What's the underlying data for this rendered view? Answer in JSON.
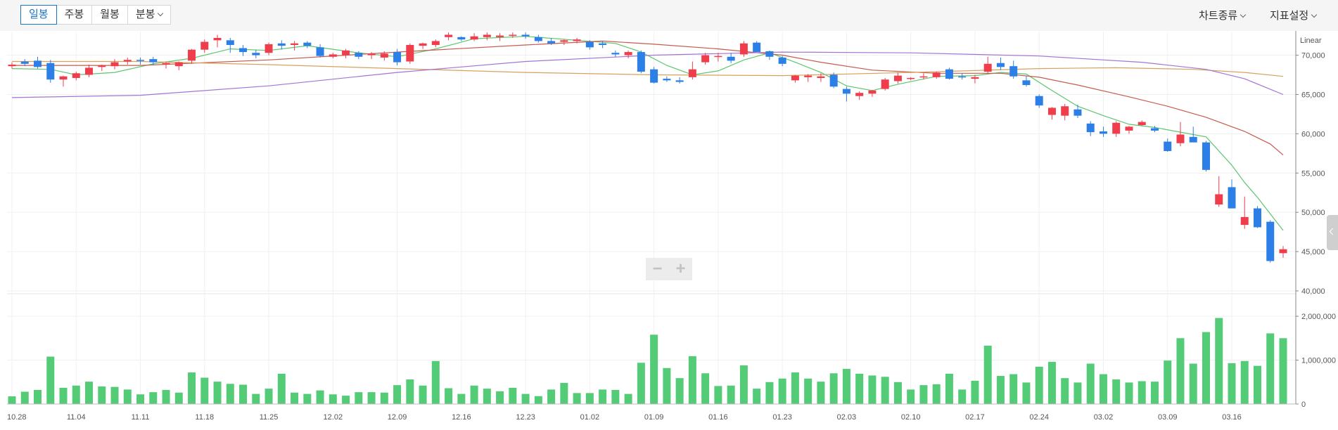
{
  "toolbar": {
    "tabs": [
      {
        "label": "일봉",
        "active": true
      },
      {
        "label": "주봉",
        "active": false
      },
      {
        "label": "월봉",
        "active": false
      },
      {
        "label": "분봉",
        "active": false,
        "dropdown": true
      }
    ],
    "chart_type_label": "차트종류",
    "indicator_label": "지표설정"
  },
  "zoom": {
    "minus": "−",
    "plus": "+"
  },
  "chart_data": {
    "type": "candlestick",
    "scale_label": "Linear",
    "price_axis": {
      "range": [
        40000,
        73000
      ],
      "ticks": [
        "40,000",
        "45,000",
        "50,000",
        "55,000",
        "60,000",
        "65,000",
        "70,000"
      ]
    },
    "volume_axis": {
      "range": [
        0,
        2450000
      ],
      "ticks": [
        "0",
        "1,000,000",
        "2,000,000"
      ]
    },
    "x_tick_labels": [
      {
        "i": 0,
        "label": "10.28"
      },
      {
        "i": 5,
        "label": "11.04"
      },
      {
        "i": 10,
        "label": "11.11"
      },
      {
        "i": 15,
        "label": "11.18"
      },
      {
        "i": 20,
        "label": "11.25"
      },
      {
        "i": 25,
        "label": "12.02"
      },
      {
        "i": 30,
        "label": "12.09"
      },
      {
        "i": 35,
        "label": "12.16"
      },
      {
        "i": 40,
        "label": "12.23"
      },
      {
        "i": 45,
        "label": "01.02"
      },
      {
        "i": 50,
        "label": "01.09"
      },
      {
        "i": 55,
        "label": "01.16"
      },
      {
        "i": 60,
        "label": "01.23"
      },
      {
        "i": 65,
        "label": "02.03"
      },
      {
        "i": 70,
        "label": "02.10"
      },
      {
        "i": 75,
        "label": "02.17"
      },
      {
        "i": 80,
        "label": "02.24"
      },
      {
        "i": 85,
        "label": "03.02"
      },
      {
        "i": 90,
        "label": "03.09"
      },
      {
        "i": 95,
        "label": "03.16"
      }
    ],
    "candles": [
      [
        68600,
        69100,
        68300,
        68800
      ],
      [
        69200,
        69500,
        68600,
        68900
      ],
      [
        69300,
        69800,
        68300,
        68500
      ],
      [
        69000,
        69400,
        66500,
        66900
      ],
      [
        66900,
        67400,
        66000,
        67300
      ],
      [
        67100,
        67900,
        66800,
        67700
      ],
      [
        67500,
        68800,
        67200,
        68400
      ],
      [
        68500,
        68800,
        68000,
        68700
      ],
      [
        68600,
        69500,
        68200,
        69100
      ],
      [
        69200,
        69700,
        68800,
        69400
      ],
      [
        69400,
        69700,
        68800,
        69300
      ],
      [
        69500,
        69800,
        68700,
        69100
      ],
      [
        68800,
        69200,
        68300,
        69000
      ],
      [
        68600,
        69200,
        68100,
        69100
      ],
      [
        69300,
        70800,
        68900,
        70700
      ],
      [
        70700,
        72000,
        70300,
        71700
      ],
      [
        71900,
        72600,
        71000,
        72200
      ],
      [
        71900,
        72200,
        70300,
        71300
      ],
      [
        70900,
        71300,
        69900,
        70400
      ],
      [
        70300,
        70700,
        69600,
        70000
      ],
      [
        70300,
        71600,
        70000,
        71400
      ],
      [
        71500,
        71900,
        70700,
        71200
      ],
      [
        71300,
        71800,
        70600,
        71500
      ],
      [
        71600,
        71800,
        70900,
        71200
      ],
      [
        71000,
        71400,
        69700,
        69900
      ],
      [
        69800,
        70300,
        69600,
        70100
      ],
      [
        70000,
        70800,
        69600,
        70600
      ],
      [
        70300,
        70500,
        69500,
        69800
      ],
      [
        70000,
        70400,
        69500,
        70200
      ],
      [
        69700,
        70500,
        69300,
        70200
      ],
      [
        70400,
        70800,
        68700,
        69100
      ],
      [
        69200,
        71500,
        68900,
        71300
      ],
      [
        71200,
        71600,
        70800,
        71500
      ],
      [
        71300,
        72000,
        71000,
        71800
      ],
      [
        72300,
        72900,
        71900,
        72600
      ],
      [
        72300,
        72400,
        71800,
        72000
      ],
      [
        72000,
        72800,
        71800,
        72400
      ],
      [
        72300,
        72900,
        71900,
        72600
      ],
      [
        72300,
        72800,
        71800,
        72500
      ],
      [
        72600,
        72900,
        72200,
        72600
      ],
      [
        72600,
        72900,
        72100,
        72400
      ],
      [
        72300,
        72600,
        71600,
        71800
      ],
      [
        71800,
        72200,
        71300,
        71500
      ],
      [
        71700,
        72000,
        71300,
        71900
      ],
      [
        71800,
        72200,
        71500,
        72000
      ],
      [
        71700,
        71900,
        70700,
        71000
      ],
      [
        71500,
        71800,
        70900,
        71300
      ],
      [
        70300,
        70600,
        69800,
        70100
      ],
      [
        70000,
        70600,
        69600,
        70400
      ],
      [
        70400,
        70600,
        67700,
        67900
      ],
      [
        68200,
        68500,
        66400,
        66500
      ],
      [
        67000,
        67300,
        66600,
        66800
      ],
      [
        66800,
        67200,
        66400,
        66600
      ],
      [
        67200,
        69200,
        66900,
        68200
      ],
      [
        69100,
        70300,
        68800,
        70000
      ],
      [
        69800,
        70300,
        69200,
        69900
      ],
      [
        69800,
        70300,
        69000,
        69300
      ],
      [
        70100,
        71800,
        69800,
        71500
      ],
      [
        71600,
        71800,
        70400,
        70400
      ],
      [
        70500,
        70600,
        69400,
        69800
      ],
      [
        69700,
        69900,
        68600,
        68900
      ],
      [
        66800,
        67500,
        66500,
        67400
      ],
      [
        67200,
        67600,
        66600,
        67400
      ],
      [
        67100,
        67700,
        66600,
        67300
      ],
      [
        67500,
        67800,
        65800,
        66000
      ],
      [
        65700,
        66000,
        64100,
        65100
      ],
      [
        64800,
        65400,
        64300,
        65200
      ],
      [
        65100,
        65600,
        64700,
        65500
      ],
      [
        65700,
        67100,
        65500,
        66900
      ],
      [
        66700,
        67800,
        66400,
        67400
      ],
      [
        67100,
        67200,
        66800,
        67100
      ],
      [
        67200,
        67700,
        66900,
        67300
      ],
      [
        67200,
        67900,
        67000,
        67800
      ],
      [
        68200,
        68400,
        66900,
        67000
      ],
      [
        67300,
        67700,
        66900,
        67200
      ],
      [
        67000,
        67500,
        66400,
        67200
      ],
      [
        67900,
        69800,
        67600,
        68900
      ],
      [
        69000,
        69700,
        68100,
        68500
      ],
      [
        68600,
        69300,
        67000,
        67300
      ],
      [
        66800,
        67400,
        66000,
        66200
      ],
      [
        64800,
        65000,
        63300,
        63600
      ],
      [
        62400,
        63400,
        61800,
        63300
      ],
      [
        62300,
        63800,
        61700,
        63500
      ],
      [
        63100,
        63700,
        62000,
        62300
      ],
      [
        61300,
        61600,
        59700,
        60200
      ],
      [
        60300,
        60900,
        59600,
        60000
      ],
      [
        60000,
        61600,
        59600,
        61400
      ],
      [
        60400,
        61000,
        60000,
        60900
      ],
      [
        61100,
        61700,
        61000,
        61500
      ],
      [
        60700,
        61000,
        60200,
        60400
      ],
      [
        59000,
        59400,
        57700,
        57800
      ],
      [
        58800,
        61500,
        58400,
        59900
      ],
      [
        59600,
        60900,
        58900,
        58900
      ],
      [
        58900,
        59100,
        55200,
        55400
      ],
      [
        51000,
        54600,
        50700,
        52300
      ],
      [
        53200,
        54200,
        50500,
        50500
      ],
      [
        48400,
        52000,
        47900,
        49400
      ],
      [
        50500,
        50800,
        48000,
        48100
      ],
      [
        48800,
        49000,
        43600,
        43800
      ],
      [
        44800,
        45700,
        44200,
        45300
      ]
    ],
    "volume": [
      175000,
      280000,
      320000,
      1080000,
      370000,
      420000,
      510000,
      400000,
      390000,
      330000,
      220000,
      270000,
      320000,
      260000,
      720000,
      600000,
      510000,
      460000,
      440000,
      230000,
      350000,
      690000,
      260000,
      230000,
      310000,
      220000,
      190000,
      270000,
      270000,
      260000,
      430000,
      560000,
      420000,
      980000,
      360000,
      230000,
      420000,
      350000,
      290000,
      370000,
      230000,
      180000,
      330000,
      480000,
      250000,
      250000,
      330000,
      320000,
      230000,
      940000,
      1580000,
      820000,
      590000,
      1090000,
      700000,
      410000,
      420000,
      880000,
      350000,
      500000,
      580000,
      720000,
      580000,
      510000,
      700000,
      800000,
      690000,
      650000,
      620000,
      500000,
      330000,
      430000,
      450000,
      690000,
      330000,
      530000,
      1330000,
      640000,
      680000,
      490000,
      850000,
      960000,
      590000,
      490000,
      920000,
      680000,
      560000,
      490000,
      520000,
      510000,
      990000,
      1500000,
      920000,
      1640000,
      1960000,
      930000,
      980000,
      870000,
      1610000,
      1500000
    ],
    "moving_averages": [
      {
        "color": "#5cc66c",
        "period": 5
      },
      {
        "color": "#c65a4e",
        "period": 20
      },
      {
        "color": "#d7a15e",
        "period": 60
      },
      {
        "color": "#a374d5",
        "period": 120
      }
    ],
    "ma_lines": [
      {
        "color": "#5cc66c",
        "points": [
          [
            0,
            68300
          ],
          [
            3,
            68200
          ],
          [
            5,
            67500
          ],
          [
            8,
            67800
          ],
          [
            11,
            68900
          ],
          [
            14,
            69600
          ],
          [
            17,
            70800
          ],
          [
            20,
            70600
          ],
          [
            23,
            71200
          ],
          [
            27,
            70300
          ],
          [
            30,
            69800
          ],
          [
            33,
            70800
          ],
          [
            36,
            72100
          ],
          [
            40,
            72400
          ],
          [
            44,
            71900
          ],
          [
            47,
            71500
          ],
          [
            49,
            70400
          ],
          [
            51,
            68700
          ],
          [
            53,
            67500
          ],
          [
            55,
            68000
          ],
          [
            57,
            69400
          ],
          [
            59,
            70300
          ],
          [
            61,
            69100
          ],
          [
            63,
            67800
          ],
          [
            65,
            66100
          ],
          [
            67,
            65500
          ],
          [
            69,
            66300
          ],
          [
            72,
            67300
          ],
          [
            75,
            67400
          ],
          [
            77,
            67800
          ],
          [
            79,
            67600
          ],
          [
            81,
            65500
          ],
          [
            83,
            63500
          ],
          [
            85,
            62300
          ],
          [
            87,
            61200
          ],
          [
            89,
            60800
          ],
          [
            91,
            60200
          ],
          [
            93,
            59600
          ],
          [
            95,
            56000
          ],
          [
            96,
            53800
          ],
          [
            97,
            51900
          ],
          [
            98,
            49800
          ],
          [
            99,
            47700
          ]
        ]
      },
      {
        "color": "#c65a4e",
        "points": [
          [
            0,
            68700
          ],
          [
            10,
            68700
          ],
          [
            20,
            69400
          ],
          [
            30,
            70400
          ],
          [
            40,
            71300
          ],
          [
            46,
            71800
          ],
          [
            50,
            71400
          ],
          [
            55,
            70800
          ],
          [
            60,
            70000
          ],
          [
            63,
            69100
          ],
          [
            67,
            68100
          ],
          [
            72,
            67700
          ],
          [
            77,
            67700
          ],
          [
            80,
            67200
          ],
          [
            83,
            66200
          ],
          [
            87,
            64700
          ],
          [
            90,
            63500
          ],
          [
            93,
            62100
          ],
          [
            96,
            60300
          ],
          [
            98,
            58700
          ],
          [
            99,
            57300
          ]
        ]
      },
      {
        "color": "#d7a15e",
        "points": [
          [
            0,
            69200
          ],
          [
            10,
            69200
          ],
          [
            20,
            68800
          ],
          [
            30,
            68300
          ],
          [
            40,
            67800
          ],
          [
            50,
            67500
          ],
          [
            60,
            67400
          ],
          [
            70,
            67800
          ],
          [
            80,
            68300
          ],
          [
            86,
            68400
          ],
          [
            92,
            68200
          ],
          [
            96,
            67800
          ],
          [
            99,
            67300
          ]
        ]
      },
      {
        "color": "#a374d5",
        "points": [
          [
            0,
            64600
          ],
          [
            10,
            64900
          ],
          [
            20,
            66100
          ],
          [
            30,
            67800
          ],
          [
            40,
            69200
          ],
          [
            50,
            70000
          ],
          [
            60,
            70400
          ],
          [
            70,
            70300
          ],
          [
            80,
            69900
          ],
          [
            88,
            69100
          ],
          [
            93,
            68200
          ],
          [
            96,
            67000
          ],
          [
            99,
            65000
          ]
        ]
      }
    ],
    "colors": {
      "up": "#ef3d4c",
      "down": "#2c7fe6",
      "volume": "#54cc77",
      "axis": "#555555",
      "grid": "#f0f0f0"
    },
    "grid": true
  }
}
